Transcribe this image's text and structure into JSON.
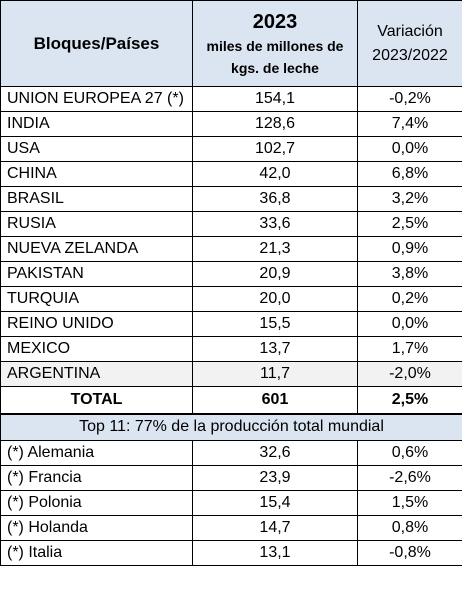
{
  "header": {
    "col1": "Bloques/Países",
    "col2_year": "2023",
    "col2_line1": "miles de millones de",
    "col2_line2": "kgs. de leche",
    "col3_line1": "Variación",
    "col3_line2": "2023/2022"
  },
  "rows": [
    {
      "name": "UNION EUROPEA 27 (*)",
      "value": "154,1",
      "change": "-0,2%"
    },
    {
      "name": "INDIA",
      "value": "128,6",
      "change": "7,4%"
    },
    {
      "name": "USA",
      "value": "102,7",
      "change": "0,0%"
    },
    {
      "name": "CHINA",
      "value": "42,0",
      "change": "6,8%"
    },
    {
      "name": "BRASIL",
      "value": "36,8",
      "change": "3,2%"
    },
    {
      "name": "RUSIA",
      "value": "33,6",
      "change": "2,5%"
    },
    {
      "name": "NUEVA ZELANDA",
      "value": "21,3",
      "change": "0,9%"
    },
    {
      "name": "PAKISTAN",
      "value": "20,9",
      "change": "3,8%"
    },
    {
      "name": "TURQUIA",
      "value": "20,0",
      "change": "0,2%"
    },
    {
      "name": "REINO UNIDO",
      "value": "15,5",
      "change": "0,0%"
    },
    {
      "name": "MEXICO",
      "value": "13,7",
      "change": "1,7%"
    },
    {
      "name": "ARGENTINA",
      "value": "11,7",
      "change": "-2,0%"
    }
  ],
  "total": {
    "name": "TOTAL",
    "value": "601",
    "change": "2,5%"
  },
  "note": "Top 11: 77% de la producción total mundial",
  "eu_rows": [
    {
      "name": "(*) Alemania",
      "value": "32,6",
      "change": "0,6%"
    },
    {
      "name": "(*) Francia",
      "value": "23,9",
      "change": "-2,6%"
    },
    {
      "name": "(*) Polonia",
      "value": "15,4",
      "change": "1,5%"
    },
    {
      "name": "(*) Holanda",
      "value": "14,7",
      "change": "0,8%"
    },
    {
      "name": "(*) Italia",
      "value": "13,1",
      "change": "-0,8%"
    }
  ]
}
